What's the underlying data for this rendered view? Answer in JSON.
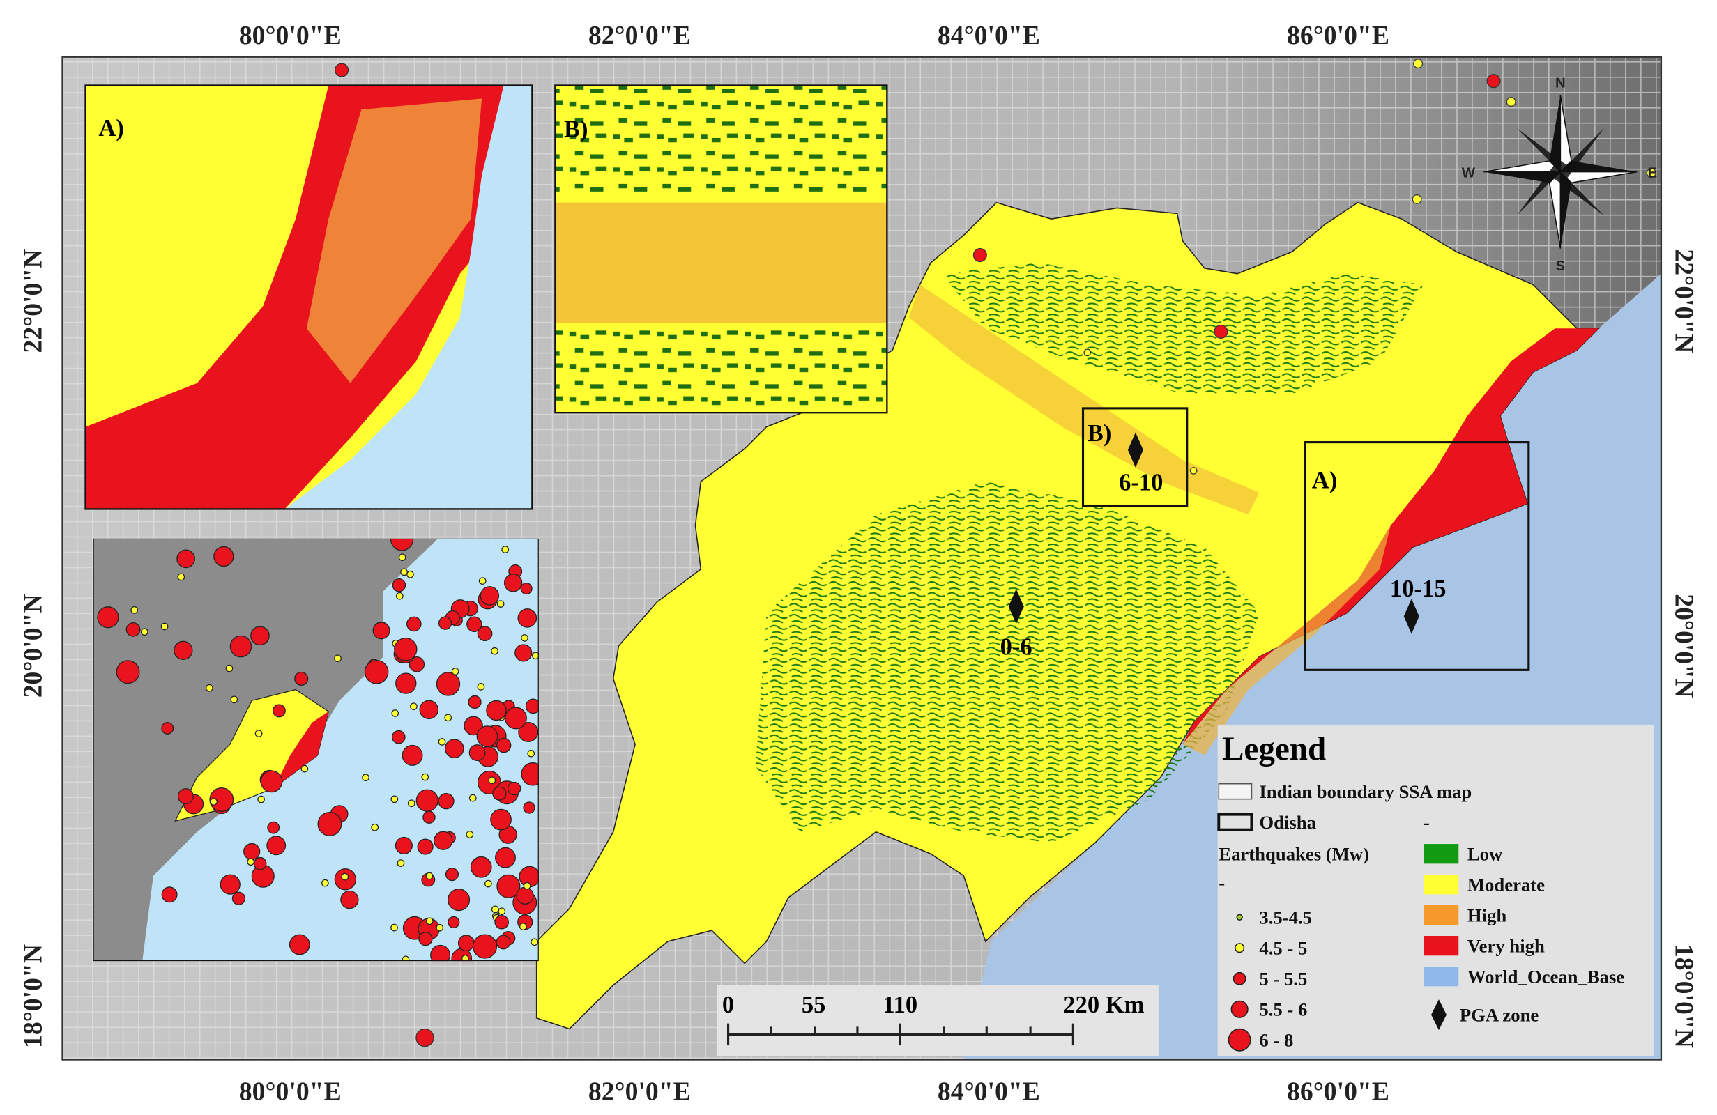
{
  "axes": {
    "lon": [
      "80°0'0\"E",
      "82°0'0\"E",
      "84°0'0\"E",
      "86°0'0\"E"
    ],
    "lat": [
      "22°0'0\"N",
      "20°0'0\"N",
      "18°0'0\"N"
    ]
  },
  "insets": {
    "a": "A)",
    "b": "B)"
  },
  "map_labels": {
    "box_a": "A)",
    "box_b": "B)",
    "pga": [
      "6-10",
      "0-6",
      "10-15"
    ]
  },
  "compass": {
    "n": "N",
    "s": "S",
    "w": "W",
    "e": "E"
  },
  "legend": {
    "title": "Legend",
    "boundary": "Indian boundary SSA map",
    "odisha": "Odisha",
    "dash1": "-",
    "quakes_title": "Earthquakes (Mw)",
    "dash2": "-",
    "quakes": [
      "3.5-4.5",
      "4.5 - 5",
      "5 - 5.5",
      "5.5 - 6",
      "6 - 8"
    ],
    "classes": [
      {
        "label": "Low",
        "color": "#129a12"
      },
      {
        "label": "Moderate",
        "color": "#ffff33"
      },
      {
        "label": "High",
        "color": "#f59a2a"
      },
      {
        "label": "Very high",
        "color": "#e8131c"
      },
      {
        "label": "World_Ocean_Base",
        "color": "#8fb8e8"
      }
    ],
    "pga": "PGA zone"
  },
  "scale_bar": [
    "0",
    "55",
    "110",
    "220 Km"
  ]
}
